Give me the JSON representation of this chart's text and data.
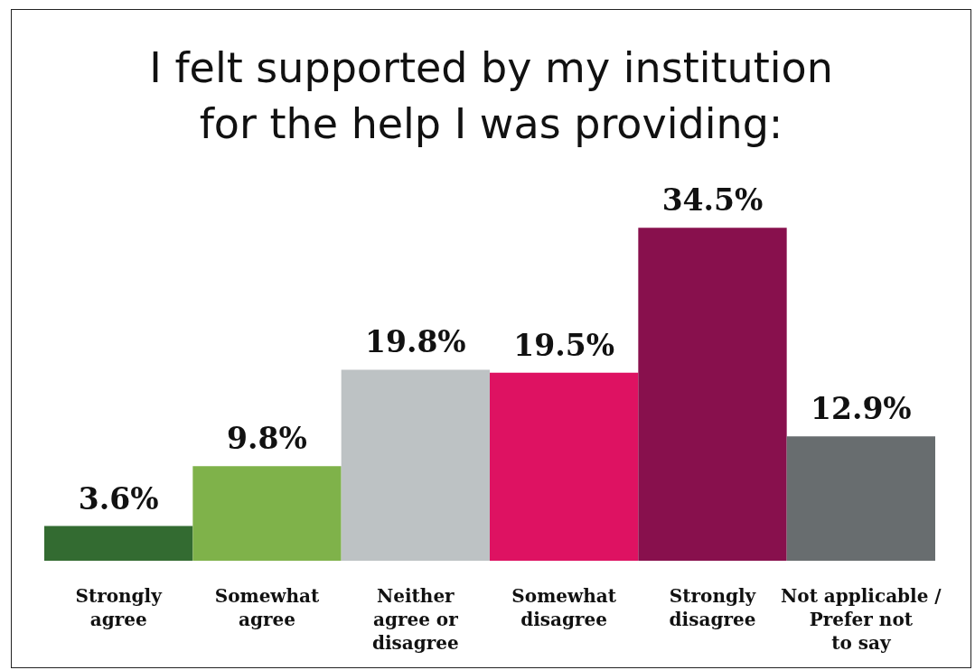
{
  "chart_data": {
    "type": "bar",
    "title": "I felt supported by my institution\nfor the help I was providing:",
    "categories": [
      "Strongly\nagree",
      "Somewhat\nagree",
      "Neither\nagree or\ndisagree",
      "Somewhat\ndisagree",
      "Strongly\ndisagree",
      "Not applicable /\nPrefer not\nto say"
    ],
    "values": [
      3.6,
      9.8,
      19.8,
      19.5,
      34.5,
      12.9
    ],
    "colors": [
      "#336b31",
      "#7fb24a",
      "#bdc2c4",
      "#de1262",
      "#88104d",
      "#686d6f"
    ],
    "value_labels": [
      "3.6%",
      "9.8%",
      "19.8%",
      "19.5%",
      "34.5%",
      "12.9%"
    ],
    "data_labels": false
  }
}
